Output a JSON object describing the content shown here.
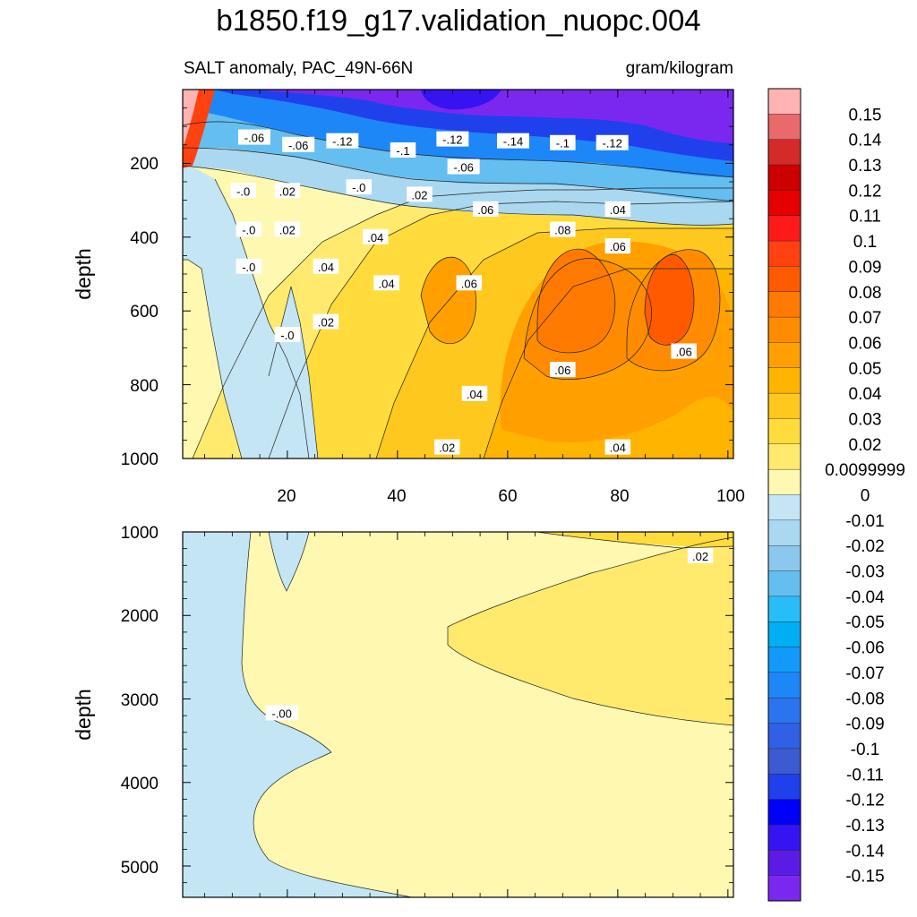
{
  "figure": {
    "title": "b1850.f19_g17.validation_nuopc.004",
    "subtitle_left": "SALT anomaly, PAC_49N-66N",
    "subtitle_right": "gram/kilogram"
  },
  "chart_data": [
    {
      "type": "heatmap",
      "panel": "upper",
      "ylabel": "depth",
      "xlim": [
        1,
        101
      ],
      "ylim": [
        0,
        1000
      ],
      "y_reversed": true,
      "x_ticks": [
        "20",
        "40",
        "60",
        "80",
        "100"
      ],
      "y_ticks": [
        "200",
        "400",
        "600",
        "800",
        "1000"
      ],
      "contour_labels": [
        {
          "text": "-.06",
          "x": 14,
          "y": 130
        },
        {
          "text": "-.06",
          "x": 22,
          "y": 150
        },
        {
          "text": "-.12",
          "x": 30,
          "y": 140
        },
        {
          "text": "-.1",
          "x": 41,
          "y": 165
        },
        {
          "text": "-.12",
          "x": 50,
          "y": 135
        },
        {
          "text": "-.14",
          "x": 61,
          "y": 140
        },
        {
          "text": "-.1",
          "x": 70,
          "y": 145
        },
        {
          "text": "-.12",
          "x": 79,
          "y": 145
        },
        {
          "text": "-.06",
          "x": 52,
          "y": 210
        },
        {
          "text": "-.0",
          "x": 33,
          "y": 265
        },
        {
          "text": "-.0",
          "x": 12,
          "y": 275
        },
        {
          "text": ".02",
          "x": 20,
          "y": 275
        },
        {
          "text": ".02",
          "x": 44,
          "y": 285
        },
        {
          "text": ".06",
          "x": 56,
          "y": 325
        },
        {
          "text": ".04",
          "x": 80,
          "y": 325
        },
        {
          "text": "-.0",
          "x": 13,
          "y": 380
        },
        {
          "text": ".02",
          "x": 20,
          "y": 380
        },
        {
          "text": ".04",
          "x": 36,
          "y": 400
        },
        {
          "text": ".08",
          "x": 70,
          "y": 380
        },
        {
          "text": ".06",
          "x": 80,
          "y": 425
        },
        {
          "text": "-.0",
          "x": 13,
          "y": 480
        },
        {
          "text": ".04",
          "x": 27,
          "y": 480
        },
        {
          "text": ".04",
          "x": 38,
          "y": 525
        },
        {
          "text": ".06",
          "x": 53,
          "y": 525
        },
        {
          "text": ".02",
          "x": 27,
          "y": 630
        },
        {
          "text": "-.0",
          "x": 20,
          "y": 665
        },
        {
          "text": ".06",
          "x": 70,
          "y": 760
        },
        {
          "text": ".06",
          "x": 92,
          "y": 710
        },
        {
          "text": ".04",
          "x": 54,
          "y": 825
        },
        {
          "text": ".02",
          "x": 49,
          "y": 970
        },
        {
          "text": ".04",
          "x": 80,
          "y": 970
        }
      ]
    },
    {
      "type": "heatmap",
      "panel": "lower",
      "ylabel": "depth",
      "xlim": [
        1,
        101
      ],
      "ylim": [
        1000,
        5375
      ],
      "y_reversed": true,
      "y_ticks": [
        "1000",
        "2000",
        "3000",
        "4000",
        "5000"
      ],
      "contour_labels": [
        {
          "text": ".02",
          "x": 95,
          "y": 1290
        },
        {
          "text": "-.00",
          "x": 19,
          "y": 3170
        }
      ]
    }
  ],
  "colorbar": {
    "levels": [
      "0.15",
      "0.14",
      "0.13",
      "0.12",
      "0.11",
      "0.1",
      "0.09",
      "0.08",
      "0.07",
      "0.06",
      "0.05",
      "0.04",
      "0.03",
      "0.02",
      "0.0099999",
      "0",
      "-0.01",
      "-0.02",
      "-0.03",
      "-0.04",
      "-0.05",
      "-0.06",
      "-0.07",
      "-0.08",
      "-0.09",
      "-0.1",
      "-0.11",
      "-0.12",
      "-0.13",
      "-0.14",
      "-0.15"
    ],
    "colors": [
      "#FFB3B3",
      "#E86A6A",
      "#D42A2A",
      "#CC0000",
      "#E60000",
      "#FF1A1A",
      "#FF4210",
      "#FF5A00",
      "#FF7A00",
      "#FF8C00",
      "#FFA000",
      "#FFB400",
      "#FFC81E",
      "#FFDC3C",
      "#FFEA6E",
      "#FFF8B0",
      "#C4E6F4",
      "#AAD8F0",
      "#8CC8EE",
      "#64BEF0",
      "#28BDF8",
      "#00AEF4",
      "#1299FA",
      "#1E87F8",
      "#2A74F0",
      "#3060E4",
      "#3C5AD2",
      "#2040EC",
      "#0000FA",
      "#3614F2",
      "#5A1CE4",
      "#7A28F0"
    ]
  }
}
